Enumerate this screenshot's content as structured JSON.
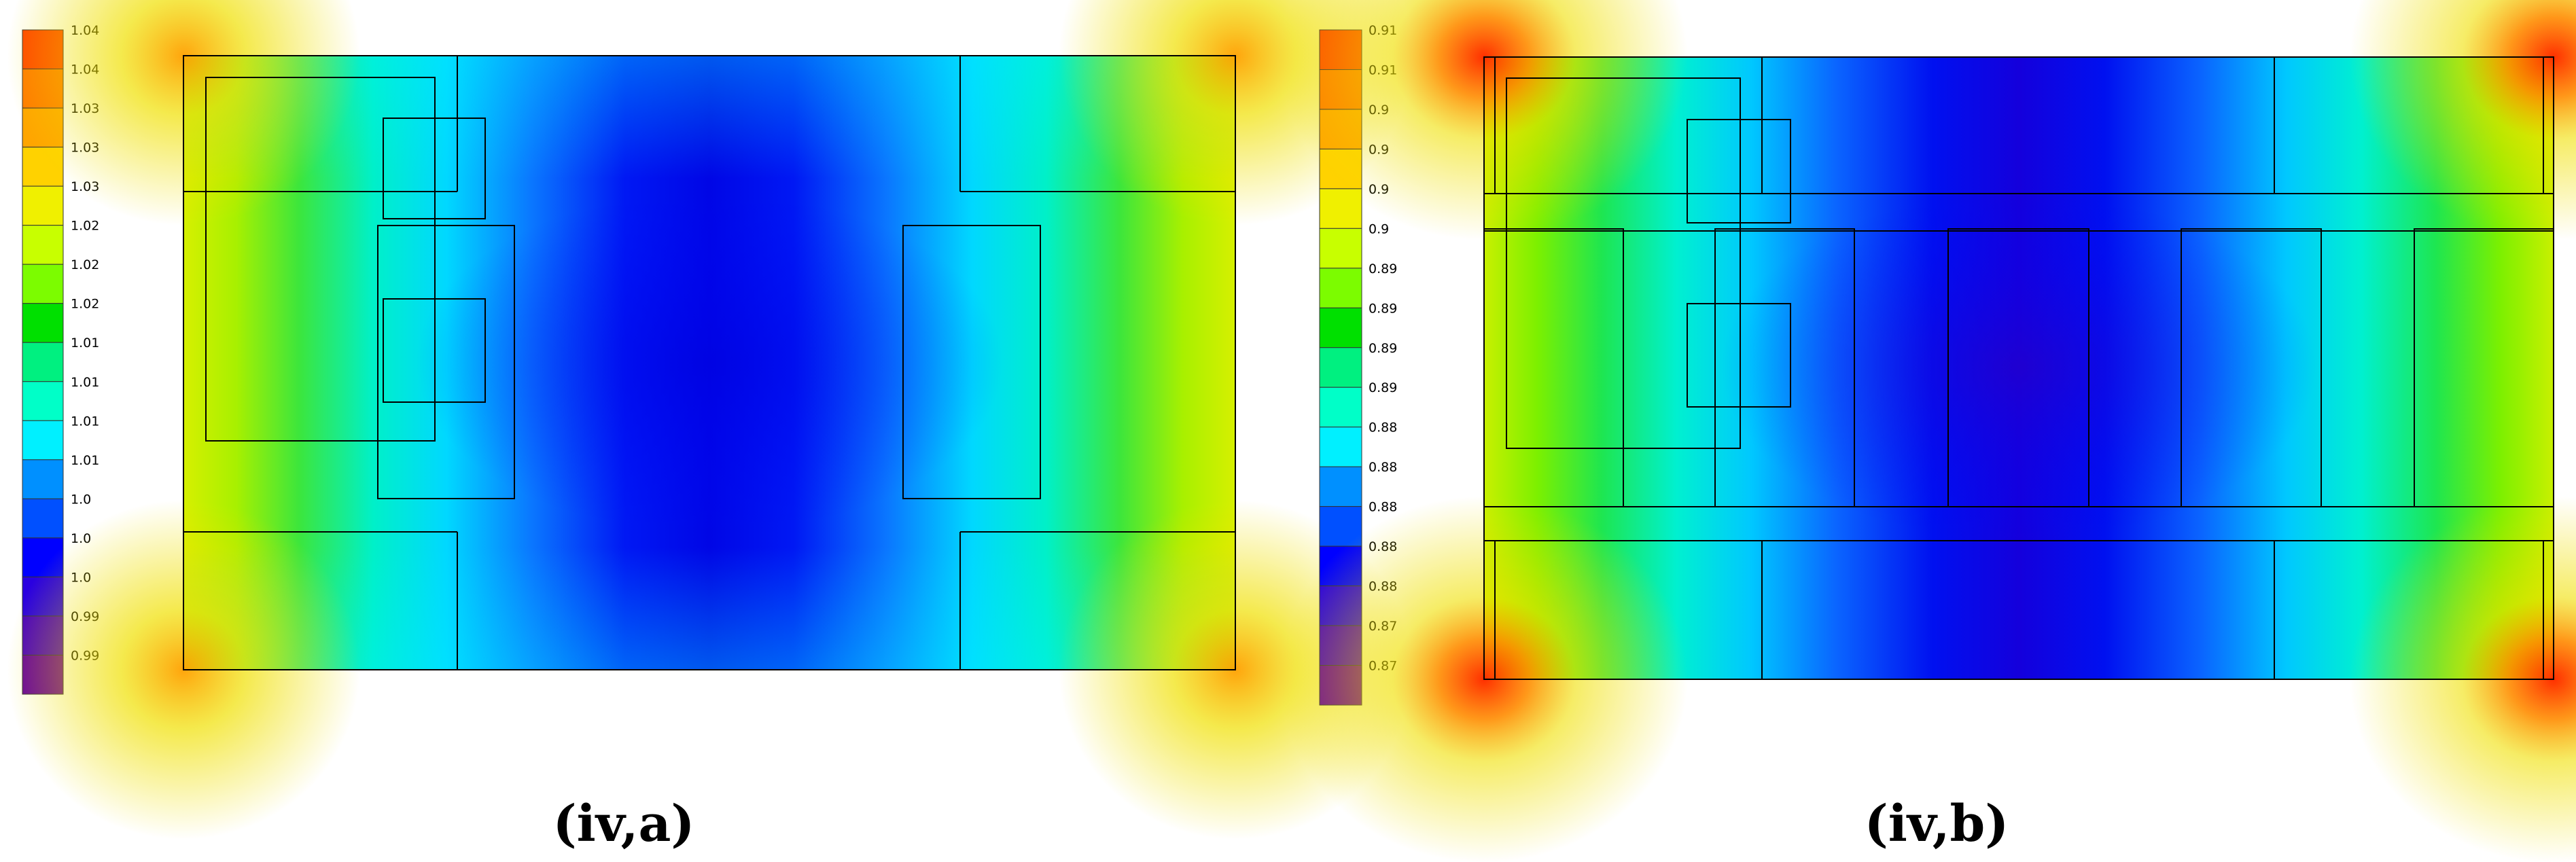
{
  "chart_data": [
    {
      "type": "heatmap",
      "caption": "(iv,a)",
      "colorbar": {
        "labels": [
          "1.04",
          "1.04",
          "1.03",
          "1.03",
          "1.03",
          "1.02",
          "1.02",
          "1.02",
          "1.01",
          "1.01",
          "1.01",
          "1.01",
          "1.0",
          "1.0",
          "1.0",
          "0.99",
          "0.99"
        ],
        "colors": [
          "#ff4500",
          "#ff7a00",
          "#ffa500",
          "#ffd200",
          "#f0f000",
          "#c8ff00",
          "#7cfc00",
          "#00e000",
          "#00f080",
          "#00ffc8",
          "#00f0ff",
          "#0090ff",
          "#0050ff",
          "#0000ff",
          "#2a00e0",
          "#4a00c0",
          "#6600a0"
        ],
        "min": 0.99,
        "max": 1.04
      },
      "field": "minimum at plan center, maximum at the four corners",
      "grid": false
    },
    {
      "type": "heatmap",
      "caption": "(iv,b)",
      "colorbar": {
        "labels": [
          "0.91",
          "0.91",
          "0.9",
          "0.9",
          "0.9",
          "0.9",
          "0.89",
          "0.89",
          "0.89",
          "0.89",
          "0.88",
          "0.88",
          "0.88",
          "0.88",
          "0.88",
          "0.87",
          "0.87"
        ],
        "colors": [
          "#ff4500",
          "#ff7a00",
          "#ffa500",
          "#ffd200",
          "#f0f000",
          "#c8ff00",
          "#7cfc00",
          "#00e000",
          "#00f080",
          "#00ffc8",
          "#00f0ff",
          "#0090ff",
          "#0050ff",
          "#0000ff",
          "#2a00e0",
          "#4a00c0",
          "#6600a0"
        ],
        "min": 0.87,
        "max": 0.91
      },
      "field": "minimum at plan center, maximum at the four corners",
      "grid": false
    }
  ]
}
